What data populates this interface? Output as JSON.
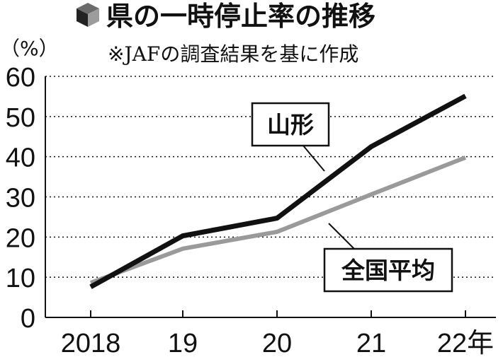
{
  "chart_data": {
    "type": "line",
    "title": "県の一時停止率の推移",
    "subtitle": "※JAFの調査結果を基に作成",
    "ylabel": "（%）",
    "xlabel": "",
    "categories": [
      "2018",
      "19",
      "20",
      "21",
      "22年"
    ],
    "ylim": [
      0,
      60
    ],
    "yticks": [
      0,
      10,
      20,
      30,
      40,
      50,
      60
    ],
    "grid": true,
    "series": [
      {
        "name": "山形",
        "values": [
          7.6,
          20.3,
          24.7,
          42.5,
          55.1
        ],
        "color": "#111111"
      },
      {
        "name": "全国平均",
        "values": [
          8.6,
          17.1,
          21.3,
          30.6,
          39.8
        ],
        "color": "#9a9a9a"
      }
    ]
  }
}
